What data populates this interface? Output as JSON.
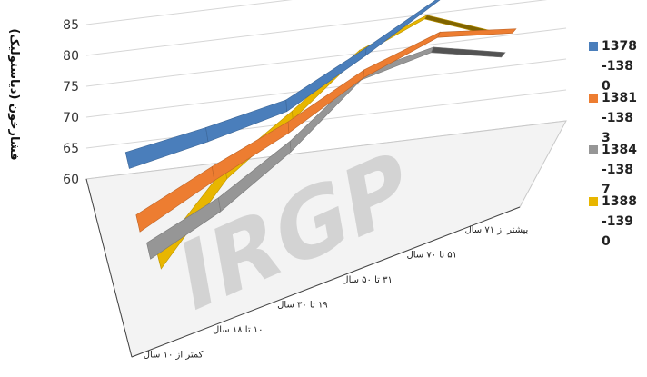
{
  "chart_data": {
    "type": "line",
    "style": "3d-ribbon",
    "title": "",
    "ylabel": "فشارخون (دیاستولیک)",
    "xlabel": "",
    "ylim": [
      60,
      85
    ],
    "yticks": [
      60,
      65,
      70,
      75,
      80,
      85
    ],
    "categories": [
      "کمتر از ۱۰ سال",
      "۱۰ تا ۱۸ سال",
      "۱۹ تا ۳۰ سال",
      "۳۱ تا ۵۰ سال",
      "۵۱ تا ۷۰ سال",
      "بیشتر از ۷۱ سال"
    ],
    "series": [
      {
        "name": "1378-1380",
        "color": "#4A7EBB",
        "values": [
          63,
          65.5,
          68.5,
          75.5,
          83,
          81
        ]
      },
      {
        "name": "1381-1383",
        "color": "#ED7D31",
        "values": [
          60.5,
          65.5,
          70,
          75.5,
          79,
          77.5
        ]
      },
      {
        "name": "1384-1387",
        "color": "#969696",
        "values": [
          63,
          66.5,
          71.5,
          78,
          79,
          76
        ]
      },
      {
        "name": "1388-1390",
        "color": "#E8B600",
        "values": [
          67,
          74.5,
          78.5,
          83,
          84.5,
          80
        ]
      }
    ],
    "legend_position": "right",
    "grid": true
  },
  "watermark": "IRGP"
}
